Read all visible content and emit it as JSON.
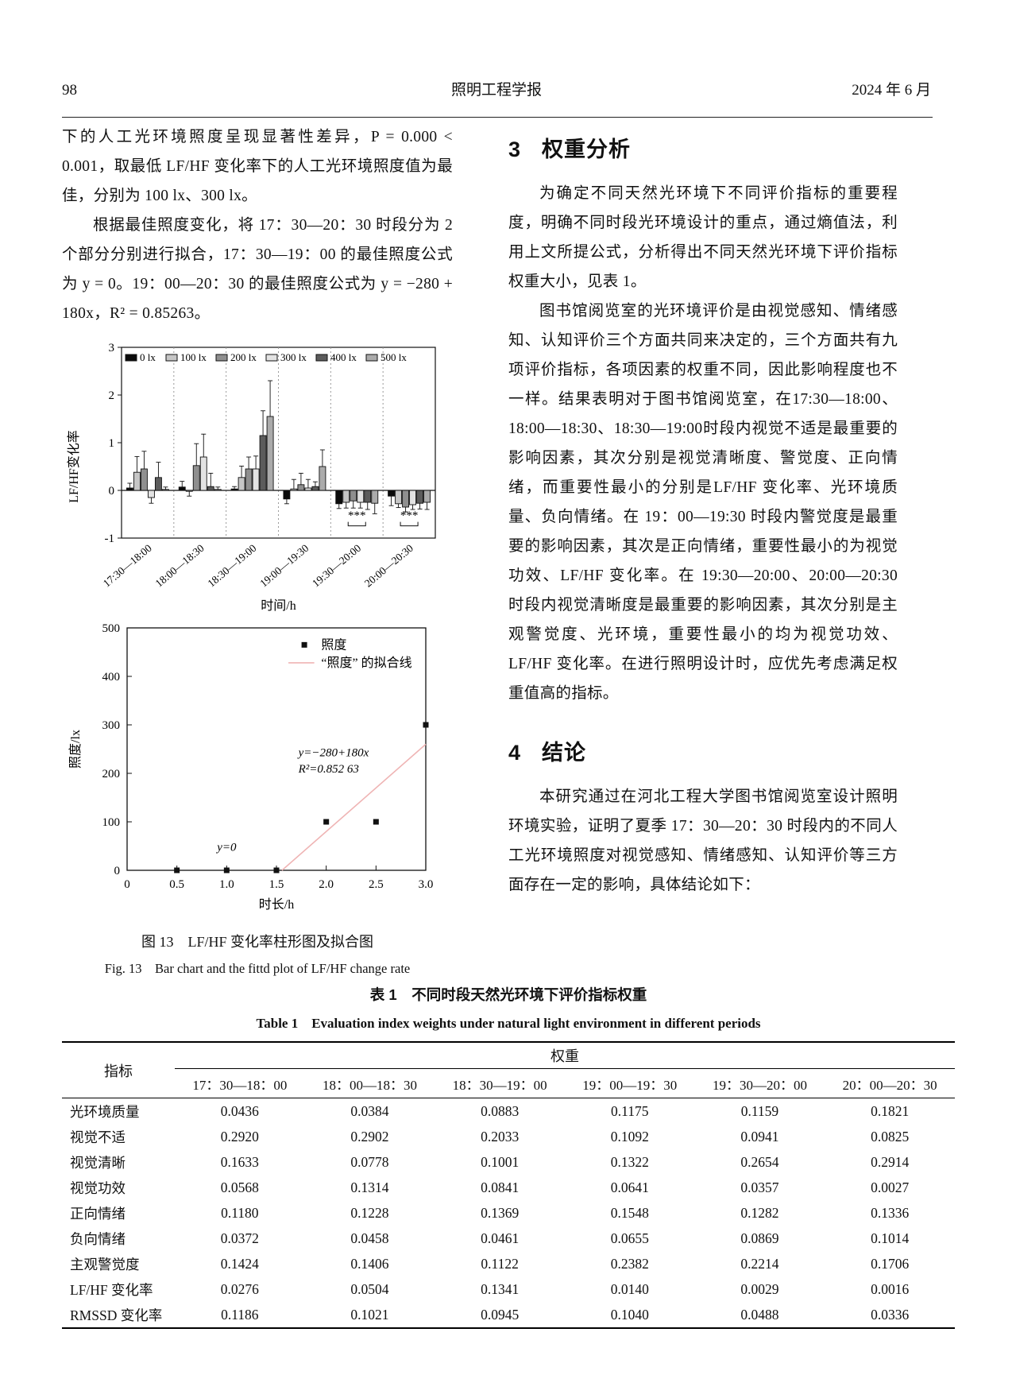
{
  "header": {
    "page_number": "98",
    "journal": "照明工程学报",
    "date": "2024 年 6 月"
  },
  "left_column": {
    "para1": "下的人工光环境照度呈现显著性差异，P = 0.000 < 0.001，取最低 LF/HF 变化率下的人工光环境照度值为最佳，分别为 100 lx、300 lx。",
    "para2": "根据最佳照度变化，将 17：30—20：30 时段分为 2 个部分分别进行拟合，17：30—19：00 的最佳照度公式为 y = 0。19：00—20：30 的最佳照度公式为 y = −280 + 180x，R² = 0.85263。",
    "fig_caption_zh": "图 13　LF/HF 变化率柱形图及拟合图",
    "fig_caption_en": "Fig. 13　Bar chart and the fittd plot of LF/HF change rate"
  },
  "right_column": {
    "section3": {
      "number": "3",
      "title": "权重分析"
    },
    "para1": "为确定不同天然光环境下不同评价指标的重要程度，明确不同时段光环境设计的重点，通过熵值法，利用上文所提公式，分析得出不同天然光环境下评价指标权重大小，见表 1。",
    "para2": "图书馆阅览室的光环境评价是由视觉感知、情绪感知、认知评价三个方面共同来决定的，三个方面共有九项评价指标，各项因素的权重不同，因此影响程度也不一样。结果表明对于图书馆阅览室，在17:30—18:00、18:00—18:30、18:30—19:00时段内视觉不适是最重要的影响因素，其次分别是视觉清晰度、警觉度、正向情绪，而重要性最小的分别是LF/HF 变化率、光环境质量、负向情绪。在 19：00—19:30 时段内警觉度是最重要的影响因素，其次是正向情绪，重要性最小的为视觉功效、LF/HF 变化率。在 19:30—20:00、20:00—20:30 时段内视觉清晰度是最重要的影响因素，其次分别是主观警觉度、光环境，重要性最小的均为视觉功效、LF/HF 变化率。在进行照明设计时，应优先考虑满足权重值高的指标。",
    "section4": {
      "number": "4",
      "title": "结论"
    },
    "para3": "本研究通过在河北工程大学图书馆阅览室设计照明环境实验，证明了夏季 17：30—20：30 时段内的不同人工光环境照度对视觉感知、情绪感知、认知评价等三方面存在一定的影响，具体结论如下："
  },
  "table": {
    "caption_zh": "表 1　不同时段天然光环境下评价指标权重",
    "caption_en": "Table 1　Evaluation index weights under natural light environment in different periods",
    "row_header": "指标",
    "col_group_header": "权重",
    "columns": [
      "17：30—18：00",
      "18：00—18：30",
      "18：30—19：00",
      "19：00—19：30",
      "19：30—20：00",
      "20：00—20：30"
    ],
    "rows": [
      {
        "label": "光环境质量",
        "values": [
          "0.0436",
          "0.0384",
          "0.0883",
          "0.1175",
          "0.1159",
          "0.1821"
        ]
      },
      {
        "label": "视觉不适",
        "values": [
          "0.2920",
          "0.2902",
          "0.2033",
          "0.1092",
          "0.0941",
          "0.0825"
        ]
      },
      {
        "label": "视觉清晰",
        "values": [
          "0.1633",
          "0.0778",
          "0.1001",
          "0.1322",
          "0.2654",
          "0.2914"
        ]
      },
      {
        "label": "视觉功效",
        "values": [
          "0.0568",
          "0.1314",
          "0.0841",
          "0.0641",
          "0.0357",
          "0.0027"
        ]
      },
      {
        "label": "正向情绪",
        "values": [
          "0.1180",
          "0.1228",
          "0.1369",
          "0.1548",
          "0.1282",
          "0.1336"
        ]
      },
      {
        "label": "负向情绪",
        "values": [
          "0.0372",
          "0.0458",
          "0.0461",
          "0.0655",
          "0.0869",
          "0.1014"
        ]
      },
      {
        "label": "主观警觉度",
        "values": [
          "0.1424",
          "0.1406",
          "0.1122",
          "0.2382",
          "0.2214",
          "0.1706"
        ]
      },
      {
        "label": "LF/HF 变化率",
        "values": [
          "0.0276",
          "0.0504",
          "0.1341",
          "0.0140",
          "0.0029",
          "0.0016"
        ]
      },
      {
        "label": "RMSSD 变化率",
        "values": [
          "0.1186",
          "0.1021",
          "0.0945",
          "0.1040",
          "0.0488",
          "0.0336"
        ]
      }
    ]
  },
  "chart_data": [
    {
      "type": "bar",
      "title": "",
      "ylabel": "LF/HF变化率",
      "xlabel": "时间/h",
      "ylim": [
        -1,
        3
      ],
      "yticks": [
        -1,
        0,
        1,
        2,
        3
      ],
      "grid": "dashed vertical separators between category groups",
      "legend_position": "top inside",
      "categories": [
        "17:30—18:00",
        "18:00—18:30",
        "18:30—19:00",
        "19:00—19:30",
        "19:30—20:00",
        "20:00—20:30"
      ],
      "series": [
        {
          "name": "0 lx",
          "color": "#0a0a0a",
          "values": [
            0.05,
            0.07,
            0.03,
            -0.18,
            -0.28,
            -0.12
          ],
          "errors": [
            0.1,
            0.12,
            0.05,
            0.1,
            0.1,
            0.2
          ]
        },
        {
          "name": "100 lx",
          "color": "#c6c6c6",
          "values": [
            0.38,
            -0.02,
            0.27,
            0.03,
            -0.25,
            -0.28
          ],
          "errors": [
            0.33,
            0.1,
            0.24,
            0.2,
            0.12,
            0.08
          ]
        },
        {
          "name": "200 lx",
          "color": "#8f8f8f",
          "values": [
            0.45,
            0.52,
            0.45,
            0.12,
            -0.22,
            -0.35
          ],
          "errors": [
            0.37,
            0.46,
            0.25,
            0.24,
            0.15,
            0.1
          ]
        },
        {
          "name": "300 lx",
          "color": "#e3e3e3",
          "values": [
            -0.15,
            0.7,
            0.45,
            0.05,
            -0.25,
            -0.3
          ],
          "errors": [
            0.12,
            0.48,
            0.27,
            0.18,
            0.12,
            0.1
          ]
        },
        {
          "name": "400 lx",
          "color": "#5c5c5c",
          "values": [
            0.27,
            0.08,
            1.15,
            0.08,
            -0.25,
            -0.27
          ],
          "errors": [
            0.32,
            0.28,
            0.52,
            0.1,
            0.15,
            0.12
          ]
        },
        {
          "name": "500 lx",
          "color": "#ababab",
          "values": [
            0.02,
            0.02,
            1.55,
            0.5,
            -0.27,
            -0.25
          ],
          "errors": [
            0.05,
            0.05,
            0.75,
            0.35,
            0.22,
            0.15
          ]
        }
      ],
      "significance": [
        {
          "category": "19:30—20:00",
          "label": "***"
        },
        {
          "category": "20:00—20:30",
          "label": "***"
        }
      ]
    },
    {
      "type": "scatter",
      "title": "",
      "ylabel": "照度/lx",
      "xlabel": "时长/h",
      "xlim": [
        0,
        3.0
      ],
      "ylim": [
        0,
        500
      ],
      "xticks": [
        "0",
        "0.5",
        "1.0",
        "1.5",
        "2.0",
        "2.5",
        "3.0"
      ],
      "yticks": [
        0,
        100,
        200,
        300,
        400,
        500
      ],
      "points": [
        [
          0.5,
          0
        ],
        [
          1.0,
          0
        ],
        [
          1.5,
          0
        ],
        [
          2.0,
          100
        ],
        [
          2.5,
          100
        ],
        [
          3.0,
          300
        ]
      ],
      "fit_line": {
        "from": [
          1.556,
          0
        ],
        "to": [
          3.0,
          260
        ],
        "color": "#efb4b4",
        "equation": "y=−280+180x",
        "r_squared": "R²=0.852 63"
      },
      "annotations": [
        {
          "text": "y=0",
          "x": 1.0,
          "y": 40
        }
      ],
      "legend": [
        {
          "label": "照度",
          "marker": "square",
          "color": "#111111"
        },
        {
          "label": "“照度” 的拟合线",
          "marker": "line",
          "color": "#efb4b4"
        }
      ]
    }
  ]
}
